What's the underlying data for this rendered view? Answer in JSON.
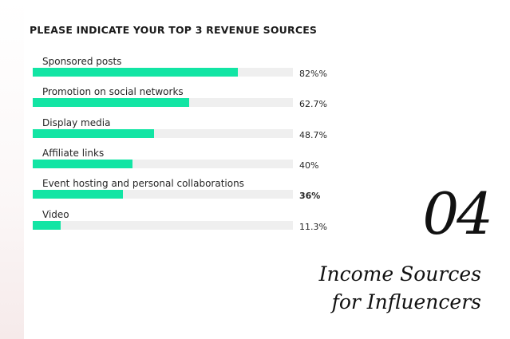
{
  "chart_data": {
    "type": "bar",
    "orientation": "horizontal",
    "title": "PLEASE INDICATE YOUR TOP 3 REVENUE SOURCES",
    "categories": [
      "Sponsored posts",
      "Promotion on social networks",
      "Display media",
      "Affiliate links",
      "Event hosting and personal collaborations",
      "Video"
    ],
    "values": [
      82,
      62.7,
      48.7,
      40,
      36,
      11.3
    ],
    "value_labels": [
      "82%%",
      "62.7%",
      "48.7%",
      "40%",
      "36%",
      "11.3%"
    ],
    "xlim": [
      0,
      100
    ],
    "grid": false,
    "bar_color": "#12e5a4",
    "track_color": "#efefef"
  },
  "section": {
    "number": "04",
    "title_line1": "Income Sources",
    "title_line2": "for Influencers"
  }
}
